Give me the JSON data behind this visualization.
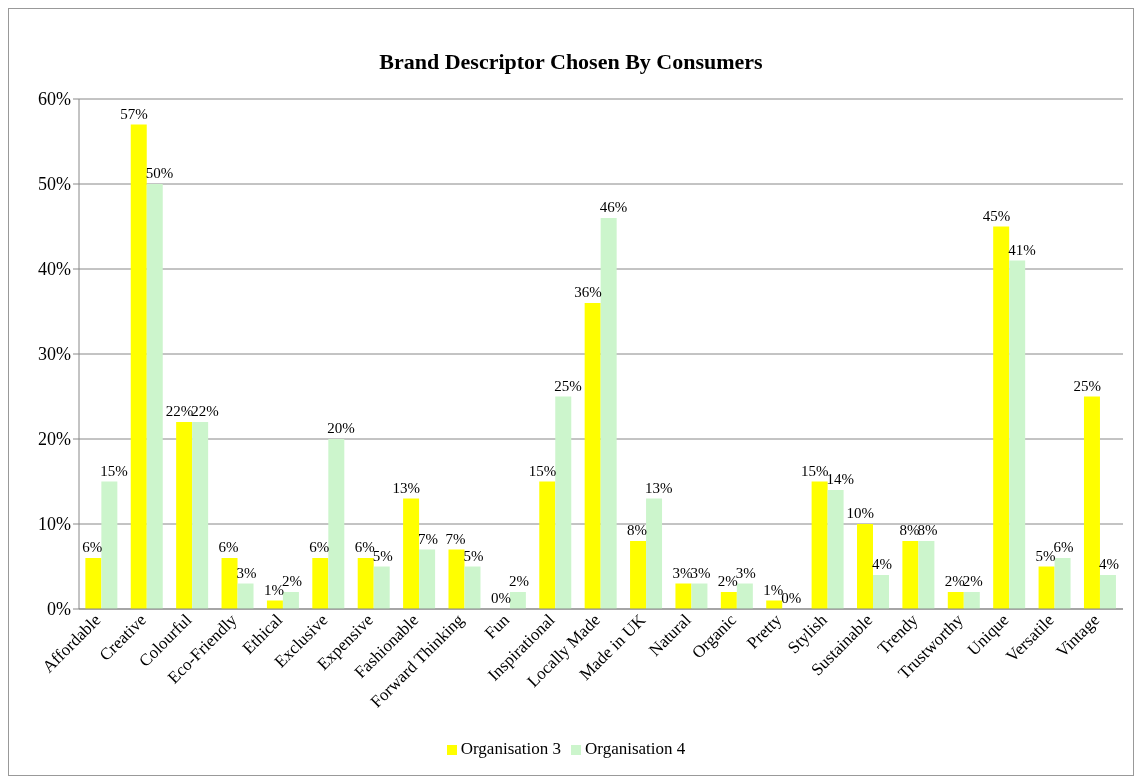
{
  "chart_data": {
    "type": "bar",
    "title": "Brand Descriptor Chosen By Consumers",
    "categories": [
      "Affordable",
      "Creative",
      "Colourful",
      "Eco-Friendly",
      "Ethical",
      "Exclusive",
      "Expensive",
      "Fashionable",
      "Forward Thinking",
      "Fun",
      "Inspirational",
      "Locally Made",
      "Made in UK",
      "Natural",
      "Organic",
      "Pretty",
      "Stylish",
      "Sustainable",
      "Trendy",
      "Trustworthy",
      "Unique",
      "Versatile",
      "Vintage"
    ],
    "series": [
      {
        "name": "Organisation 3",
        "color": "#ffff00",
        "values": [
          6,
          57,
          22,
          6,
          1,
          6,
          6,
          13,
          7,
          0,
          15,
          36,
          8,
          3,
          2,
          1,
          15,
          10,
          8,
          2,
          45,
          5,
          25
        ],
        "value_labels": [
          "6%",
          "57%",
          "22%",
          "6%",
          "1%",
          "6%",
          "6%",
          "13%",
          "7%",
          "0%",
          "15%",
          "36%",
          "8%",
          "3%",
          "2%",
          "1%",
          "15%",
          "10%",
          "8%",
          "2%",
          "45%",
          "5%",
          "25%"
        ]
      },
      {
        "name": "Organisation 4",
        "color": "#ccf5cc",
        "values": [
          15,
          50,
          22,
          3,
          2,
          20,
          5,
          7,
          5,
          2,
          25,
          46,
          13,
          3,
          3,
          0,
          14,
          4,
          8,
          2,
          41,
          6,
          4
        ],
        "value_labels": [
          "15%",
          "50%",
          "22%",
          "3%",
          "2%",
          "20%",
          "5%",
          "7%",
          "5%",
          "2%",
          "25%",
          "46%",
          "13%",
          "3%",
          "3%",
          "0%",
          "14%",
          "4%",
          "8%",
          "2%",
          "41%",
          "6%",
          "4%"
        ]
      }
    ],
    "ylim": [
      0,
      60
    ],
    "yticks": [
      {
        "value": 0,
        "label": "0%"
      },
      {
        "value": 10,
        "label": "10%"
      },
      {
        "value": 20,
        "label": "20%"
      },
      {
        "value": 30,
        "label": "30%"
      },
      {
        "value": 40,
        "label": "40%"
      },
      {
        "value": 50,
        "label": "50%"
      },
      {
        "value": 60,
        "label": "60%"
      }
    ],
    "grid": "y",
    "legend": "bottom"
  }
}
